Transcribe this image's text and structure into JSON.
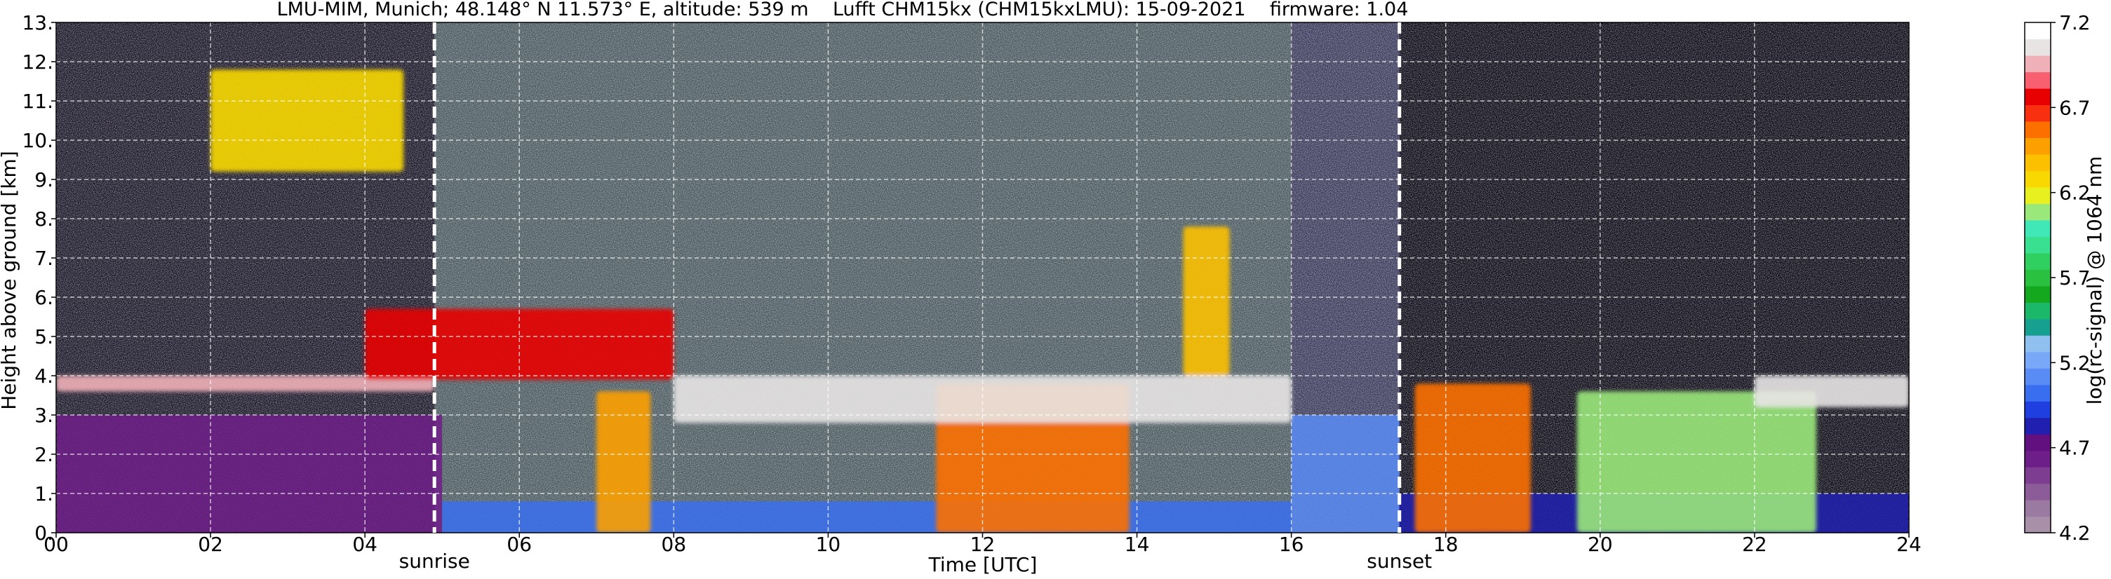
{
  "chart_data": {
    "type": "heatmap",
    "title": "LMU-MIM, Munich; 48.148° N 11.573° E, altitude: 539 m    Lufft CHM15kx (CHM15kxLMU): 15-09-2021    firmware: 1.04",
    "xlabel": "Time [UTC]",
    "ylabel": "Height above ground [km]",
    "xlim": [
      0,
      24
    ],
    "ylim": [
      0,
      13
    ],
    "x_ticks": [
      "00",
      "02",
      "04",
      "06",
      "08",
      "10",
      "12",
      "14",
      "16",
      "18",
      "20",
      "22",
      "24"
    ],
    "y_ticks": [
      "0.",
      "1.",
      "2.",
      "3.",
      "4.",
      "5.",
      "6.",
      "7.",
      "8.",
      "9.",
      "10.",
      "11.",
      "12.",
      "13."
    ],
    "grid": true,
    "annotations": [
      {
        "label": "sunrise",
        "x": 4.9
      },
      {
        "label": "sunset",
        "x": 17.4
      }
    ],
    "colorbar": {
      "label": "log(rc-signal) @ 1064 nm",
      "range": [
        4.2,
        7.2
      ],
      "ticks": [
        "4.2",
        "4.7",
        "5.2",
        "5.7",
        "6.2",
        "6.7",
        "7.2"
      ],
      "colors": [
        "#a890a8",
        "#9a7aa0",
        "#8c5c98",
        "#7d3d90",
        "#6e1e88",
        "#62107f",
        "#2020b0",
        "#1f3fe0",
        "#3a6ef0",
        "#5a8cf5",
        "#7aa8f8",
        "#90c0f0",
        "#16a090",
        "#1ab868",
        "#14a81e",
        "#2ac040",
        "#30d060",
        "#38e090",
        "#40e8b8",
        "#9ae87a",
        "#e8f020",
        "#f8d800",
        "#fcc000",
        "#fca000",
        "#fc7000",
        "#f83010",
        "#e80000",
        "#f86070",
        "#f0b0b8",
        "#e8e4e4",
        "#ffffff"
      ]
    },
    "cloud_layers": [
      {
        "t0": 0.0,
        "t1": 4.9,
        "h0": 3.6,
        "h1": 4.0,
        "level": 7.0
      },
      {
        "t0": 2.0,
        "t1": 4.5,
        "h0": 9.2,
        "h1": 11.8,
        "level": 6.3
      },
      {
        "t0": 4.0,
        "t1": 8.0,
        "h0": 3.9,
        "h1": 5.7,
        "level": 6.8
      },
      {
        "t0": 7.0,
        "t1": 7.7,
        "h0": 0.0,
        "h1": 3.6,
        "level": 6.5
      },
      {
        "t0": 11.4,
        "t1": 13.9,
        "h0": 0.0,
        "h1": 3.8,
        "level": 6.6
      },
      {
        "t0": 14.6,
        "t1": 15.2,
        "h0": 4.0,
        "h1": 7.8,
        "level": 6.4
      },
      {
        "t0": 17.6,
        "t1": 19.1,
        "h0": 0.0,
        "h1": 3.8,
        "level": 6.6
      },
      {
        "t0": 19.7,
        "t1": 22.8,
        "h0": 0.0,
        "h1": 3.6,
        "level": 6.1
      },
      {
        "t0": 8.0,
        "t1": 16.0,
        "h0": 2.8,
        "h1": 4.0,
        "level": 7.1
      },
      {
        "t0": 22.0,
        "t1": 24.0,
        "h0": 3.2,
        "h1": 4.0,
        "level": 7.1
      }
    ],
    "boundary_layer": [
      {
        "t0": 0.0,
        "t1": 5.0,
        "h0": 0.0,
        "h1": 3.0,
        "level": 4.6
      },
      {
        "t0": 5.0,
        "t1": 16.0,
        "h0": 0.0,
        "h1": 0.8,
        "level": 5.0
      },
      {
        "t0": 16.0,
        "t1": 17.4,
        "h0": 0.0,
        "h1": 3.0,
        "level": 5.1
      },
      {
        "t0": 17.4,
        "t1": 24.0,
        "h0": 0.0,
        "h1": 1.0,
        "level": 4.8
      }
    ]
  }
}
